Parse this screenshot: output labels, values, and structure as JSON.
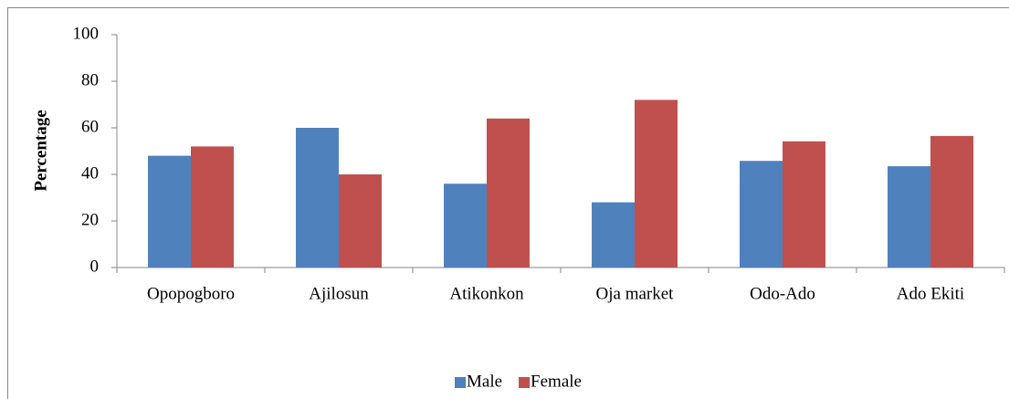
{
  "chart_data": {
    "type": "bar",
    "y_label": "Percentage",
    "categories": [
      "Opopogboro",
      "Ajilosun",
      "Atikonkon",
      "Oja market",
      "Odo-Ado",
      "Ado Ekiti"
    ],
    "series": [
      {
        "name": "Male",
        "color": "#4f81bd",
        "values": [
          48,
          60,
          36,
          28,
          45.8,
          43.5
        ]
      },
      {
        "name": "Female",
        "color": "#c0504d",
        "values": [
          52,
          40,
          64,
          72,
          54.2,
          56.5
        ]
      }
    ],
    "ylim": [
      0,
      100
    ],
    "yticks": [
      0,
      20,
      40,
      60,
      80,
      100
    ],
    "grid": false,
    "legend": "bottom"
  }
}
